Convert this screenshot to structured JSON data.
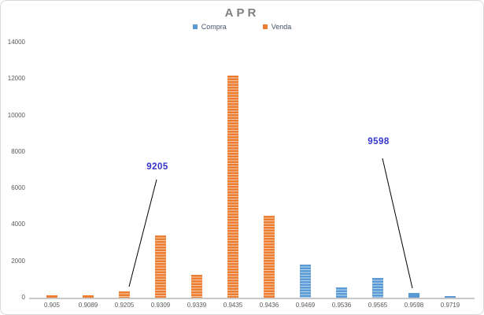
{
  "chart": {
    "title": "APR"
  },
  "chart_data": {
    "type": "bar",
    "title": "APR",
    "categories": [
      "0.905",
      "0.9089",
      "0.9205",
      "0.9309",
      "0.9339",
      "0.9435",
      "0.9436",
      "0.9469",
      "0.9536",
      "0.9565",
      "0.9598",
      "0.9719"
    ],
    "series": [
      {
        "name": "Compra",
        "color": "#5B9BD5",
        "stripe_color": "#BDD7EE",
        "values": [
          0,
          0,
          0,
          0,
          0,
          0,
          0,
          1800,
          550,
          1100,
          250,
          100
        ]
      },
      {
        "name": "Venda",
        "color": "#ED7D31",
        "stripe_color": "#F8CBAD",
        "values": [
          150,
          150,
          350,
          3400,
          1250,
          12200,
          4500,
          0,
          0,
          0,
          0,
          0
        ]
      }
    ],
    "xlabel": "",
    "ylabel": "",
    "ylim": [
      0,
      14000
    ],
    "y_ticks": [
      0,
      2000,
      4000,
      6000,
      8000,
      10000,
      12000,
      14000
    ],
    "grid": false,
    "legend_position": "top-center",
    "annotations": [
      {
        "text": "9205",
        "target_category": "0.9205",
        "color": "#3333CC"
      },
      {
        "text": "9598",
        "target_category": "0.9598",
        "color": "#3333CC"
      }
    ]
  }
}
